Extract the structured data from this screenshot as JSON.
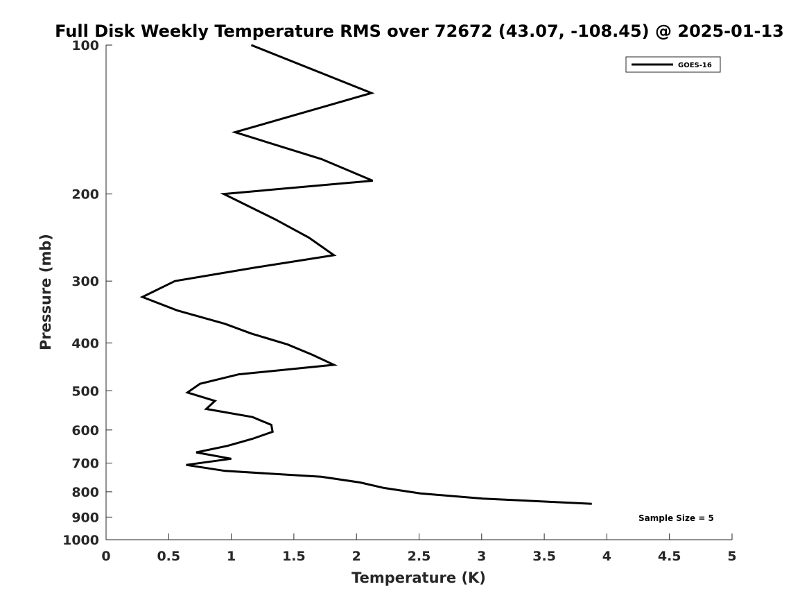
{
  "chart_data": {
    "type": "line",
    "title": "Full Disk Weekly Temperature RMS over 72672 (43.07, -108.45) @ 2025-01-13",
    "xlabel": "Temperature (K)",
    "ylabel": "Pressure (mb)",
    "xlim": [
      0,
      5
    ],
    "ylim": [
      100,
      1000
    ],
    "yscale": "log",
    "y_reversed": true,
    "x_ticks": [
      "0",
      "0.5",
      "1",
      "1.5",
      "2",
      "2.5",
      "3",
      "3.5",
      "4",
      "4.5",
      "5"
    ],
    "y_ticks": [
      "100",
      "200",
      "300",
      "400",
      "500",
      "600",
      "700",
      "800",
      "900",
      "1000"
    ],
    "grid": false,
    "legend_position": "top-right",
    "annotation": "Sample Size = 5",
    "series": [
      {
        "name": "GOES-16",
        "color": "#000000",
        "points": [
          {
            "x": 1.16,
            "y": 100
          },
          {
            "x": 2.12,
            "y": 125
          },
          {
            "x": 1.03,
            "y": 150
          },
          {
            "x": 1.72,
            "y": 170
          },
          {
            "x": 2.13,
            "y": 188
          },
          {
            "x": 0.94,
            "y": 200
          },
          {
            "x": 1.35,
            "y": 225
          },
          {
            "x": 1.62,
            "y": 245
          },
          {
            "x": 1.82,
            "y": 266
          },
          {
            "x": 1.18,
            "y": 282
          },
          {
            "x": 0.55,
            "y": 300
          },
          {
            "x": 0.29,
            "y": 323
          },
          {
            "x": 0.57,
            "y": 344
          },
          {
            "x": 0.95,
            "y": 366
          },
          {
            "x": 1.16,
            "y": 383
          },
          {
            "x": 1.45,
            "y": 403
          },
          {
            "x": 1.65,
            "y": 423
          },
          {
            "x": 1.82,
            "y": 443
          },
          {
            "x": 1.06,
            "y": 463
          },
          {
            "x": 0.75,
            "y": 484
          },
          {
            "x": 0.65,
            "y": 504
          },
          {
            "x": 0.87,
            "y": 524
          },
          {
            "x": 0.8,
            "y": 544
          },
          {
            "x": 1.17,
            "y": 565
          },
          {
            "x": 1.32,
            "y": 586
          },
          {
            "x": 1.33,
            "y": 605
          },
          {
            "x": 1.17,
            "y": 625
          },
          {
            "x": 0.97,
            "y": 646
          },
          {
            "x": 0.72,
            "y": 666
          },
          {
            "x": 1.0,
            "y": 686
          },
          {
            "x": 0.64,
            "y": 706
          },
          {
            "x": 0.95,
            "y": 726
          },
          {
            "x": 1.72,
            "y": 746
          },
          {
            "x": 2.03,
            "y": 766
          },
          {
            "x": 2.22,
            "y": 786
          },
          {
            "x": 2.51,
            "y": 806
          },
          {
            "x": 3.01,
            "y": 826
          },
          {
            "x": 3.88,
            "y": 846
          }
        ]
      }
    ]
  }
}
